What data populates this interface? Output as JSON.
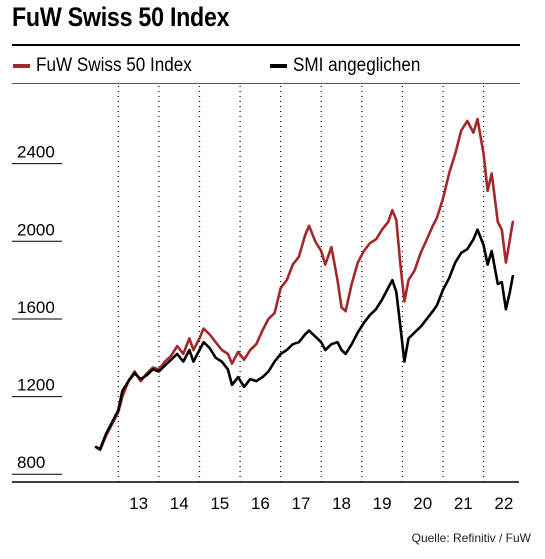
{
  "chart_data": {
    "type": "line",
    "title": "FuW Swiss 50 Index",
    "xlabel": "",
    "ylabel": "",
    "x_ticks": [
      "13",
      "14",
      "15",
      "16",
      "17",
      "18",
      "19",
      "20",
      "21",
      "22"
    ],
    "y_ticks": [
      800,
      1200,
      1600,
      2000,
      2400
    ],
    "xlim": [
      2012.4,
      2022.75
    ],
    "ylim": [
      760,
      2800
    ],
    "grid": "dotted vertical",
    "legend": "top",
    "series": [
      {
        "name": "FuW Swiss 50 Index",
        "color": "#a3282b",
        "points": [
          [
            2012.45,
            940
          ],
          [
            2012.55,
            925
          ],
          [
            2012.7,
            1000
          ],
          [
            2012.85,
            1060
          ],
          [
            2013.0,
            1120
          ],
          [
            2013.1,
            1200
          ],
          [
            2013.25,
            1280
          ],
          [
            2013.4,
            1330
          ],
          [
            2013.55,
            1280
          ],
          [
            2013.7,
            1320
          ],
          [
            2013.85,
            1350
          ],
          [
            2014.0,
            1340
          ],
          [
            2014.15,
            1380
          ],
          [
            2014.3,
            1410
          ],
          [
            2014.45,
            1460
          ],
          [
            2014.6,
            1420
          ],
          [
            2014.75,
            1500
          ],
          [
            2014.85,
            1440
          ],
          [
            2015.0,
            1500
          ],
          [
            2015.1,
            1550
          ],
          [
            2015.25,
            1520
          ],
          [
            2015.4,
            1480
          ],
          [
            2015.55,
            1440
          ],
          [
            2015.7,
            1420
          ],
          [
            2015.8,
            1370
          ],
          [
            2015.95,
            1430
          ],
          [
            2016.1,
            1390
          ],
          [
            2016.25,
            1440
          ],
          [
            2016.4,
            1470
          ],
          [
            2016.55,
            1540
          ],
          [
            2016.7,
            1600
          ],
          [
            2016.85,
            1630
          ],
          [
            2017.0,
            1760
          ],
          [
            2017.15,
            1800
          ],
          [
            2017.3,
            1880
          ],
          [
            2017.45,
            1920
          ],
          [
            2017.6,
            2030
          ],
          [
            2017.7,
            2080
          ],
          [
            2017.85,
            2000
          ],
          [
            2018.0,
            1950
          ],
          [
            2018.1,
            1880
          ],
          [
            2018.25,
            1970
          ],
          [
            2018.4,
            1800
          ],
          [
            2018.5,
            1660
          ],
          [
            2018.6,
            1640
          ],
          [
            2018.75,
            1780
          ],
          [
            2018.9,
            1890
          ],
          [
            2019.05,
            1950
          ],
          [
            2019.2,
            1990
          ],
          [
            2019.35,
            2010
          ],
          [
            2019.5,
            2060
          ],
          [
            2019.65,
            2100
          ],
          [
            2019.75,
            2160
          ],
          [
            2019.85,
            2110
          ],
          [
            2019.95,
            1880
          ],
          [
            2020.05,
            1690
          ],
          [
            2020.15,
            1800
          ],
          [
            2020.3,
            1850
          ],
          [
            2020.45,
            1940
          ],
          [
            2020.6,
            2010
          ],
          [
            2020.75,
            2080
          ],
          [
            2020.85,
            2120
          ],
          [
            2021.0,
            2220
          ],
          [
            2021.15,
            2350
          ],
          [
            2021.3,
            2450
          ],
          [
            2021.45,
            2570
          ],
          [
            2021.6,
            2620
          ],
          [
            2021.75,
            2560
          ],
          [
            2021.85,
            2630
          ],
          [
            2022.0,
            2450
          ],
          [
            2022.1,
            2260
          ],
          [
            2022.2,
            2350
          ],
          [
            2022.35,
            2100
          ],
          [
            2022.45,
            2060
          ],
          [
            2022.55,
            1890
          ],
          [
            2022.65,
            2010
          ],
          [
            2022.72,
            2100
          ]
        ]
      },
      {
        "name": "SMI angeglichen",
        "color": "#000000",
        "points": [
          [
            2012.45,
            940
          ],
          [
            2012.55,
            930
          ],
          [
            2012.7,
            1010
          ],
          [
            2012.85,
            1070
          ],
          [
            2013.0,
            1130
          ],
          [
            2013.1,
            1230
          ],
          [
            2013.25,
            1280
          ],
          [
            2013.4,
            1320
          ],
          [
            2013.55,
            1290
          ],
          [
            2013.7,
            1310
          ],
          [
            2013.85,
            1340
          ],
          [
            2014.0,
            1330
          ],
          [
            2014.15,
            1360
          ],
          [
            2014.3,
            1390
          ],
          [
            2014.45,
            1420
          ],
          [
            2014.6,
            1380
          ],
          [
            2014.75,
            1440
          ],
          [
            2014.85,
            1380
          ],
          [
            2015.0,
            1440
          ],
          [
            2015.1,
            1480
          ],
          [
            2015.25,
            1450
          ],
          [
            2015.4,
            1400
          ],
          [
            2015.55,
            1380
          ],
          [
            2015.7,
            1340
          ],
          [
            2015.8,
            1260
          ],
          [
            2015.95,
            1300
          ],
          [
            2016.1,
            1250
          ],
          [
            2016.25,
            1290
          ],
          [
            2016.4,
            1280
          ],
          [
            2016.55,
            1300
          ],
          [
            2016.7,
            1330
          ],
          [
            2016.85,
            1380
          ],
          [
            2017.0,
            1420
          ],
          [
            2017.15,
            1440
          ],
          [
            2017.3,
            1470
          ],
          [
            2017.45,
            1480
          ],
          [
            2017.6,
            1520
          ],
          [
            2017.7,
            1540
          ],
          [
            2017.85,
            1510
          ],
          [
            2018.0,
            1480
          ],
          [
            2018.1,
            1440
          ],
          [
            2018.25,
            1470
          ],
          [
            2018.4,
            1480
          ],
          [
            2018.5,
            1440
          ],
          [
            2018.6,
            1420
          ],
          [
            2018.75,
            1470
          ],
          [
            2018.9,
            1530
          ],
          [
            2019.05,
            1580
          ],
          [
            2019.2,
            1620
          ],
          [
            2019.35,
            1650
          ],
          [
            2019.5,
            1700
          ],
          [
            2019.65,
            1760
          ],
          [
            2019.75,
            1800
          ],
          [
            2019.85,
            1740
          ],
          [
            2019.95,
            1560
          ],
          [
            2020.05,
            1380
          ],
          [
            2020.15,
            1500
          ],
          [
            2020.3,
            1530
          ],
          [
            2020.45,
            1560
          ],
          [
            2020.6,
            1600
          ],
          [
            2020.75,
            1640
          ],
          [
            2020.85,
            1670
          ],
          [
            2021.0,
            1750
          ],
          [
            2021.15,
            1810
          ],
          [
            2021.3,
            1890
          ],
          [
            2021.45,
            1940
          ],
          [
            2021.6,
            1960
          ],
          [
            2021.75,
            2010
          ],
          [
            2021.85,
            2060
          ],
          [
            2022.0,
            1980
          ],
          [
            2022.1,
            1880
          ],
          [
            2022.2,
            1950
          ],
          [
            2022.35,
            1780
          ],
          [
            2022.45,
            1790
          ],
          [
            2022.55,
            1650
          ],
          [
            2022.65,
            1740
          ],
          [
            2022.72,
            1820
          ]
        ]
      }
    ]
  },
  "source": "Quelle: Refinitiv / FuW"
}
